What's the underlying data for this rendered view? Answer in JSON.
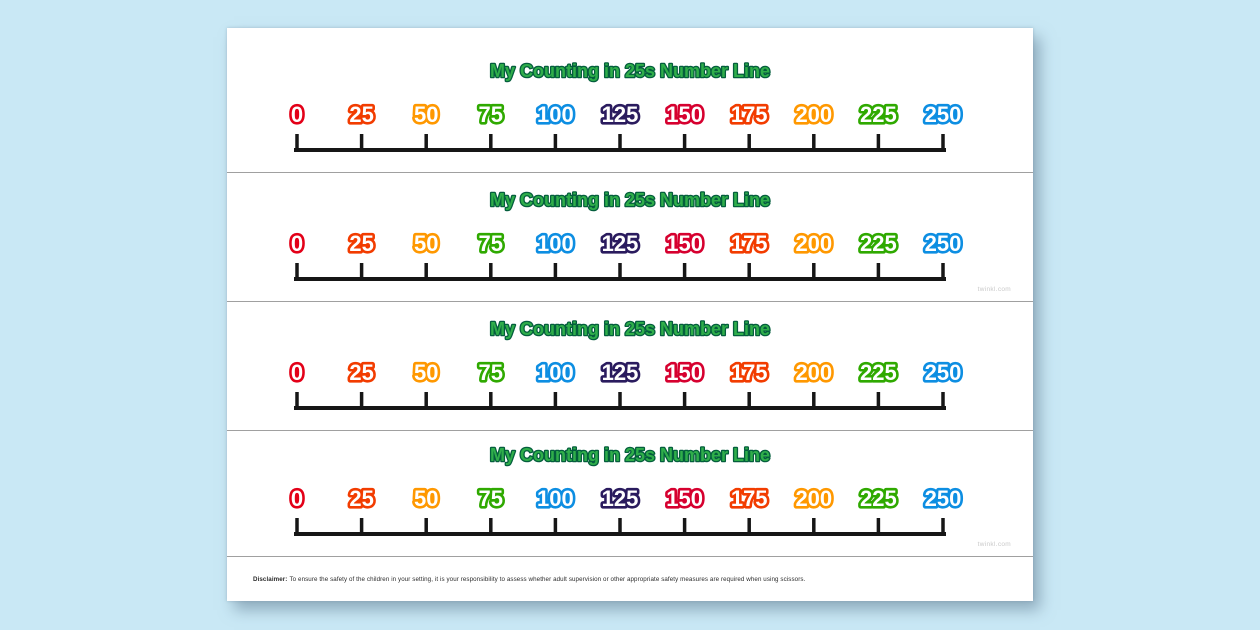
{
  "canvas": {
    "background_color": "#c9e8f5",
    "paper_color": "#ffffff"
  },
  "strip_template": {
    "title": "My Counting in 25s Number Line",
    "title_fill_color": "#2fae4a",
    "title_outline_color": "#045e3d",
    "line_color": "#161616",
    "number_fill_color": "#ffffff",
    "numbers": [
      {
        "label": "0",
        "color": "#e30018"
      },
      {
        "label": "25",
        "color": "#f23c00"
      },
      {
        "label": "50",
        "color": "#ff9800"
      },
      {
        "label": "75",
        "color": "#2fa900"
      },
      {
        "label": "100",
        "color": "#0d8ee2"
      },
      {
        "label": "125",
        "color": "#2a1b5e"
      },
      {
        "label": "150",
        "color": "#d6002f"
      },
      {
        "label": "175",
        "color": "#f23c00"
      },
      {
        "label": "200",
        "color": "#ff9800"
      },
      {
        "label": "225",
        "color": "#2fa900"
      },
      {
        "label": "250",
        "color": "#0d8ee2"
      }
    ]
  },
  "strips": [
    {
      "watermark": ""
    },
    {
      "watermark": "twinkl.com"
    },
    {
      "watermark": ""
    },
    {
      "watermark": "twinkl.com"
    }
  ],
  "footer": {
    "disclaimer_label": "Disclaimer:",
    "disclaimer_text": "To ensure the safety of the children in your setting, it is your responsibility to assess whether adult supervision or other appropriate safety measures are required when using scissors."
  }
}
